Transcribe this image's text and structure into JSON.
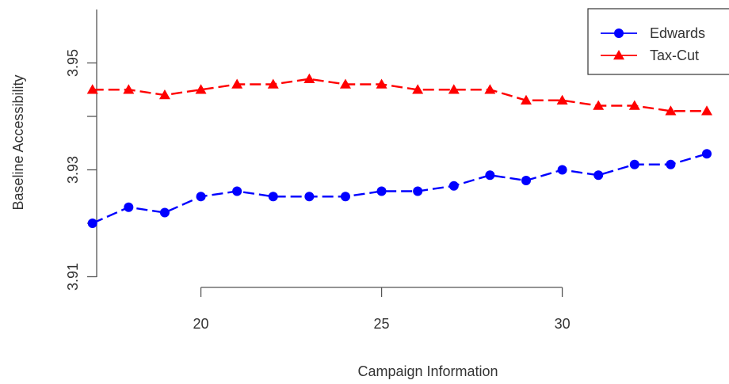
{
  "chart_data": {
    "type": "line",
    "title": "",
    "xlabel": "Campaign Information",
    "ylabel": "Baseline Accessibility",
    "xlim": [
      15.8,
      34.0
    ],
    "ylim": [
      3.908,
      3.96
    ],
    "x_ticks": [
      "20",
      "25",
      "30"
    ],
    "y_ticks": [
      "3.91",
      "3.93",
      "3.95"
    ],
    "grid": false,
    "legend_position": "top-right",
    "x": [
      17,
      18,
      19,
      20,
      21,
      22,
      23,
      24,
      25,
      26,
      27,
      28,
      29,
      30,
      31,
      32,
      33,
      34
    ],
    "series": [
      {
        "name": "Edwards",
        "color": "#0000ff",
        "marker": "circle",
        "values": [
          3.92,
          3.923,
          3.922,
          3.925,
          3.926,
          3.925,
          3.925,
          3.925,
          3.926,
          3.926,
          3.927,
          3.929,
          3.928,
          3.93,
          3.929,
          3.931,
          3.931,
          3.933
        ]
      },
      {
        "name": "Tax-Cut",
        "color": "#ff0000",
        "marker": "triangle",
        "values": [
          3.945,
          3.945,
          3.944,
          3.945,
          3.946,
          3.946,
          3.947,
          3.946,
          3.946,
          3.945,
          3.945,
          3.945,
          3.943,
          3.943,
          3.942,
          3.942,
          3.941,
          3.941
        ]
      }
    ]
  }
}
